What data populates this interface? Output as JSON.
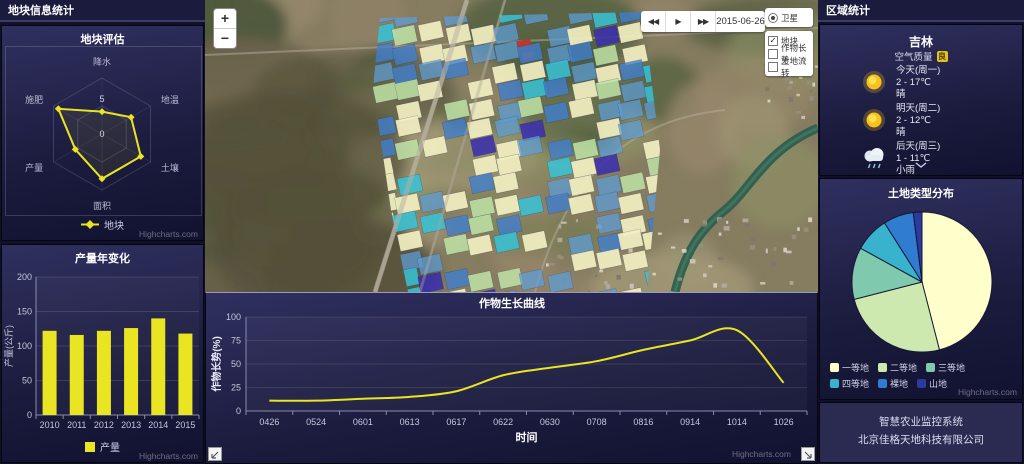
{
  "left_sidebar": {
    "header": "地块信息统计"
  },
  "map": {
    "zoom_in": "+",
    "zoom_out": "−",
    "toolbar": {
      "rewind": "◀◀",
      "play": "▶",
      "forward": "▶▶",
      "date": "2015-06-26"
    },
    "layers": {
      "base": {
        "label": "卫星",
        "selected": true
      },
      "items": [
        {
          "label": "地块",
          "checked": true
        },
        {
          "label": "作物长势",
          "checked": false
        },
        {
          "label": "土地流转",
          "checked": false
        }
      ]
    },
    "parcel_palette": [
      {
        "name": "grade1-cream",
        "color": "#f2efc2",
        "opacity": 0.92,
        "weight": 0.34
      },
      {
        "name": "light-blue",
        "color": "#5d9fd8",
        "opacity": 0.72,
        "weight": 0.28
      },
      {
        "name": "mid-blue",
        "color": "#3f7fd0",
        "opacity": 0.78,
        "weight": 0.14
      },
      {
        "name": "cyan",
        "color": "#38c3d8",
        "opacity": 0.85,
        "weight": 0.09
      },
      {
        "name": "light-green",
        "color": "#bfe3a6",
        "opacity": 0.85,
        "weight": 0.08
      },
      {
        "name": "indigo",
        "color": "#3c2fae",
        "opacity": 0.88,
        "weight": 0.07
      }
    ]
  },
  "right_sidebar": {
    "header": "区域统计",
    "weather": {
      "region": "吉林",
      "air_quality_label": "空气质量",
      "air_quality_value": "良",
      "days": [
        {
          "icon": "sun",
          "title": "今天(周一)",
          "temp": "2 - 17℃",
          "desc": "晴"
        },
        {
          "icon": "sun",
          "title": "明天(周二)",
          "temp": "2 - 12℃",
          "desc": "晴"
        },
        {
          "icon": "rain",
          "title": "后天(周三)",
          "temp": "1 - 11℃",
          "desc": "小雨"
        }
      ]
    },
    "footer": {
      "line1": "智慧农业监控系统",
      "line2": "北京佳格天地科技有限公司"
    }
  },
  "chart_data": [
    {
      "id": "radar",
      "type": "radar",
      "title": "地块评估",
      "categories": [
        "降水",
        "地温",
        "土壤",
        "面积",
        "产量",
        "施肥"
      ],
      "series": [
        {
          "name": "地块",
          "values": [
            4,
            6,
            8,
            8,
            5.5,
            9
          ]
        }
      ],
      "ylim": [
        0,
        10
      ],
      "ticks": [
        0,
        5
      ],
      "color": "#e9e522",
      "credit": "Highcharts.com"
    },
    {
      "id": "bar",
      "type": "bar",
      "title": "产量年变化",
      "categories": [
        "2010",
        "2011",
        "2012",
        "2013",
        "2014",
        "2015"
      ],
      "series": [
        {
          "name": "产量",
          "values": [
            122,
            116,
            122,
            126,
            140,
            118
          ]
        }
      ],
      "ylabel": "产量(公斤)",
      "ylim": [
        0,
        200
      ],
      "ytick": 50,
      "color": "#e9e522",
      "credit": "Highcharts.com"
    },
    {
      "id": "growth",
      "type": "line",
      "title": "作物生长曲线",
      "x": [
        "0426",
        "0524",
        "0601",
        "0613",
        "0617",
        "0622",
        "0630",
        "0708",
        "0816",
        "0914",
        "1014",
        "1026"
      ],
      "series": [
        {
          "name": "作物长势",
          "values": [
            11,
            11,
            13,
            15,
            21,
            38,
            46,
            53,
            65,
            75,
            86,
            30
          ]
        }
      ],
      "xlabel": "时间",
      "ylabel": "作物长势(%)",
      "ylim": [
        0,
        100
      ],
      "ytick": 25,
      "color": "#e9e522",
      "credit": "Highcharts.com"
    },
    {
      "id": "pie",
      "type": "pie",
      "title": "土地类型分布",
      "labels": [
        "一等地",
        "二等地",
        "三等地",
        "四等地",
        "裸地",
        "山地"
      ],
      "values": [
        46,
        25,
        12,
        8,
        7,
        2
      ],
      "colors": [
        "#ffffcc",
        "#cde9b0",
        "#7fc9ae",
        "#38b2cd",
        "#2f7cd0",
        "#2b3a9e"
      ],
      "credit": "Highcharts.com"
    }
  ]
}
